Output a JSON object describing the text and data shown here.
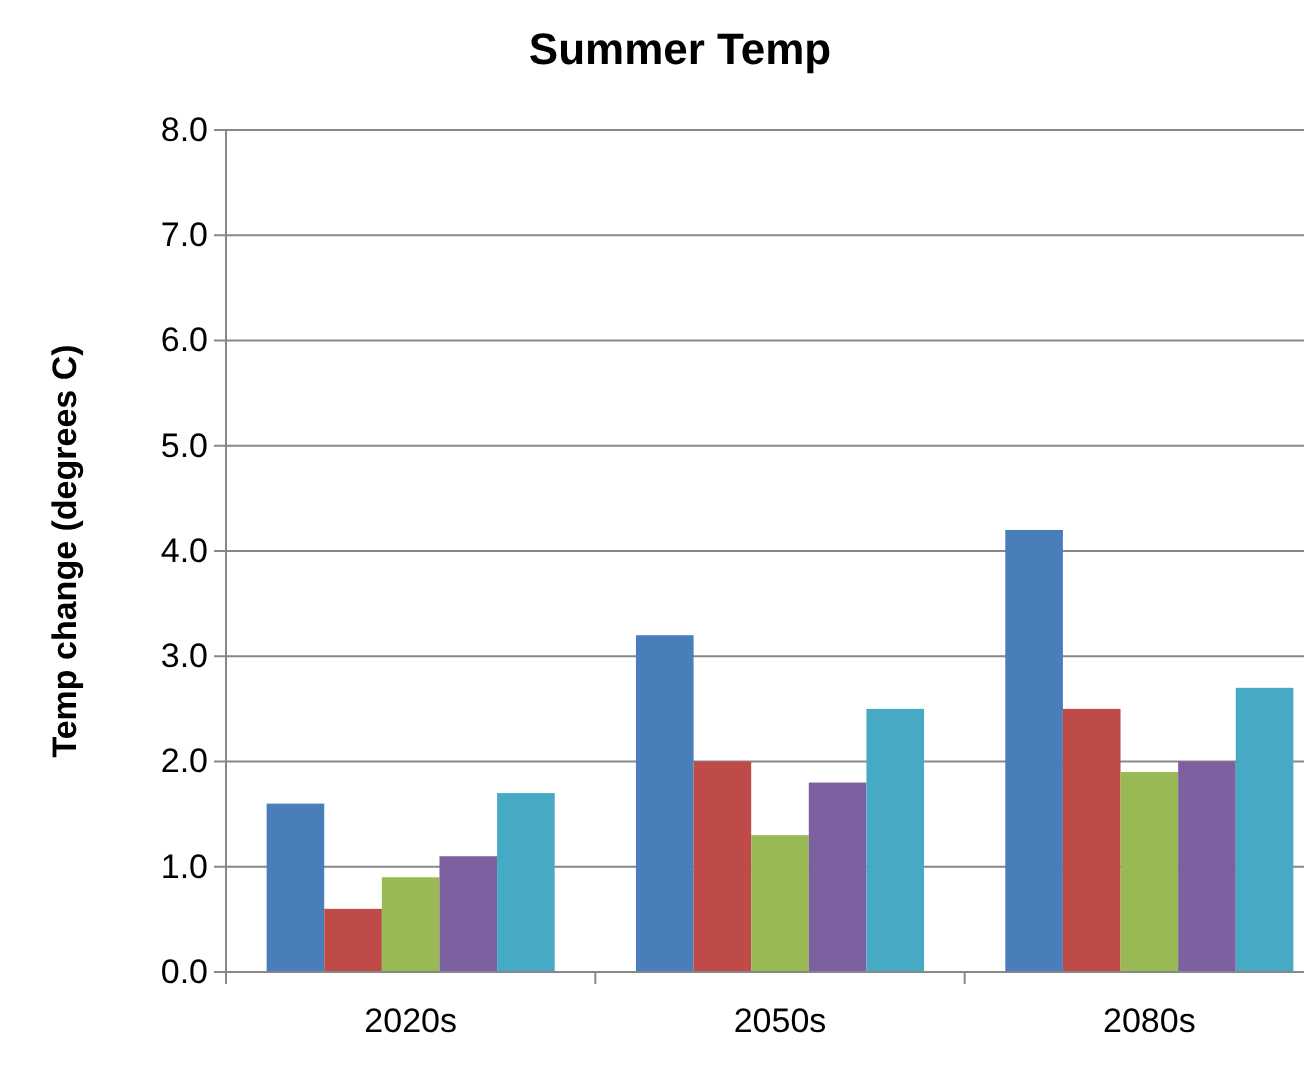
{
  "chart_data": {
    "type": "bar",
    "title": "Summer Temp",
    "ylabel": "Temp change (degrees C)",
    "categories": [
      "2020s",
      "2050s",
      "2080s"
    ],
    "series": [
      {
        "color": "#4a7ebb",
        "values": [
          1.6,
          3.2,
          4.2
        ]
      },
      {
        "color": "#be4b48",
        "values": [
          0.6,
          2.0,
          2.5
        ]
      },
      {
        "color": "#98b954",
        "values": [
          0.9,
          1.3,
          1.9
        ]
      },
      {
        "color": "#7d60a0",
        "values": [
          1.1,
          1.8,
          2.0
        ]
      },
      {
        "color": "#46aac5",
        "values": [
          1.7,
          2.5,
          2.7
        ]
      }
    ],
    "ylim": [
      0,
      8
    ],
    "yticks": [
      {
        "value": 0,
        "label": "0.0"
      },
      {
        "value": 1,
        "label": "1.0"
      },
      {
        "value": 2,
        "label": "2.0"
      },
      {
        "value": 3,
        "label": "3.0"
      },
      {
        "value": 4,
        "label": "4.0"
      },
      {
        "value": 5,
        "label": "5.0"
      },
      {
        "value": 6,
        "label": "6.0"
      },
      {
        "value": 7,
        "label": "7.0"
      },
      {
        "value": 8,
        "label": "8.0"
      }
    ],
    "grid": "y"
  }
}
